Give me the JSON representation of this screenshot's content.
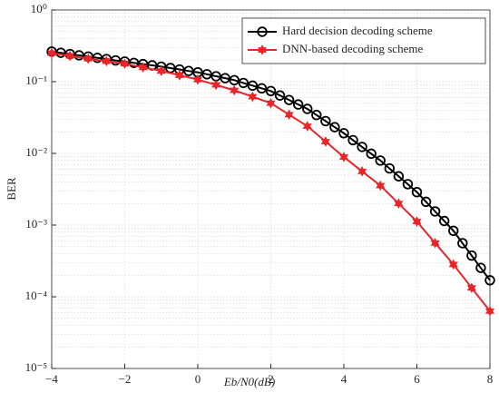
{
  "chart_data": {
    "type": "line",
    "xlabel": "Eb/N0(dB)",
    "ylabel": "BER",
    "xlim": [
      -4,
      8
    ],
    "xticks": [
      {
        "value": -4,
        "label": "−4"
      },
      {
        "value": -2,
        "label": "−2"
      },
      0,
      2,
      4,
      6,
      8
    ],
    "ylim": [
      1e-05,
      1
    ],
    "yticks": [
      {
        "value": 1e-05,
        "label": "10⁻⁵"
      },
      {
        "value": 0.0001,
        "label": "10⁻⁴"
      },
      {
        "value": 0.001,
        "label": "10⁻³"
      },
      {
        "value": 0.01,
        "label": "10⁻²"
      },
      {
        "value": 0.1,
        "label": "10⁻¹"
      },
      {
        "value": 1,
        "label": "10⁰"
      }
    ],
    "log_y": true,
    "grid": true,
    "legend": "top-right",
    "series": [
      {
        "name": "Hard decision decoding scheme",
        "color": "#000000",
        "marker": "circle",
        "x": [
          -4,
          -3.75,
          -3.5,
          -3.25,
          -3,
          -2.75,
          -2.5,
          -2.25,
          -2,
          -1.75,
          -1.5,
          -1.25,
          -1,
          -0.75,
          -0.5,
          -0.25,
          0,
          0.25,
          0.5,
          0.75,
          1,
          1.25,
          1.5,
          1.75,
          2,
          2.25,
          2.5,
          2.75,
          3,
          3.25,
          3.5,
          3.75,
          4,
          4.25,
          4.5,
          4.75,
          5,
          5.25,
          5.5,
          5.75,
          6,
          6.25,
          6.5,
          6.75,
          7,
          7.25,
          7.5,
          7.75,
          8
        ],
        "values": [
          0.263,
          0.253,
          0.243,
          0.233,
          0.224,
          0.215,
          0.207,
          0.198,
          0.191,
          0.183,
          0.176,
          0.169,
          0.162,
          0.155,
          0.148,
          0.141,
          0.135,
          0.127,
          0.119,
          0.112,
          0.105,
          0.096,
          0.0881,
          0.0808,
          0.0741,
          0.0642,
          0.0556,
          0.0481,
          0.0417,
          0.0343,
          0.0282,
          0.0232,
          0.0191,
          0.0153,
          0.0123,
          0.00989,
          0.00794,
          0.00617,
          0.00479,
          0.00372,
          0.00288,
          0.00211,
          0.00155,
          0.00114,
          0.000832,
          0.000559,
          0.000376,
          0.000253,
          0.00017
        ]
      },
      {
        "name": "DNN-based decoding scheme",
        "color": "#e8262a",
        "marker": "star",
        "x": [
          -4,
          -3.5,
          -3,
          -2.5,
          -2,
          -1.5,
          -1,
          -0.5,
          0,
          0.5,
          1,
          1.5,
          2,
          2.5,
          3,
          3.5,
          4,
          4.5,
          5,
          5.5,
          6,
          6.5,
          7,
          7.5,
          8
        ],
        "values": [
          0.251,
          0.229,
          0.209,
          0.193,
          0.178,
          0.158,
          0.141,
          0.123,
          0.107,
          0.0902,
          0.0759,
          0.0617,
          0.0501,
          0.0347,
          0.024,
          0.0146,
          0.00891,
          0.00562,
          0.00355,
          0.002,
          0.00112,
          0.000562,
          0.000282,
          0.000133,
          6.31e-05
        ]
      }
    ]
  }
}
